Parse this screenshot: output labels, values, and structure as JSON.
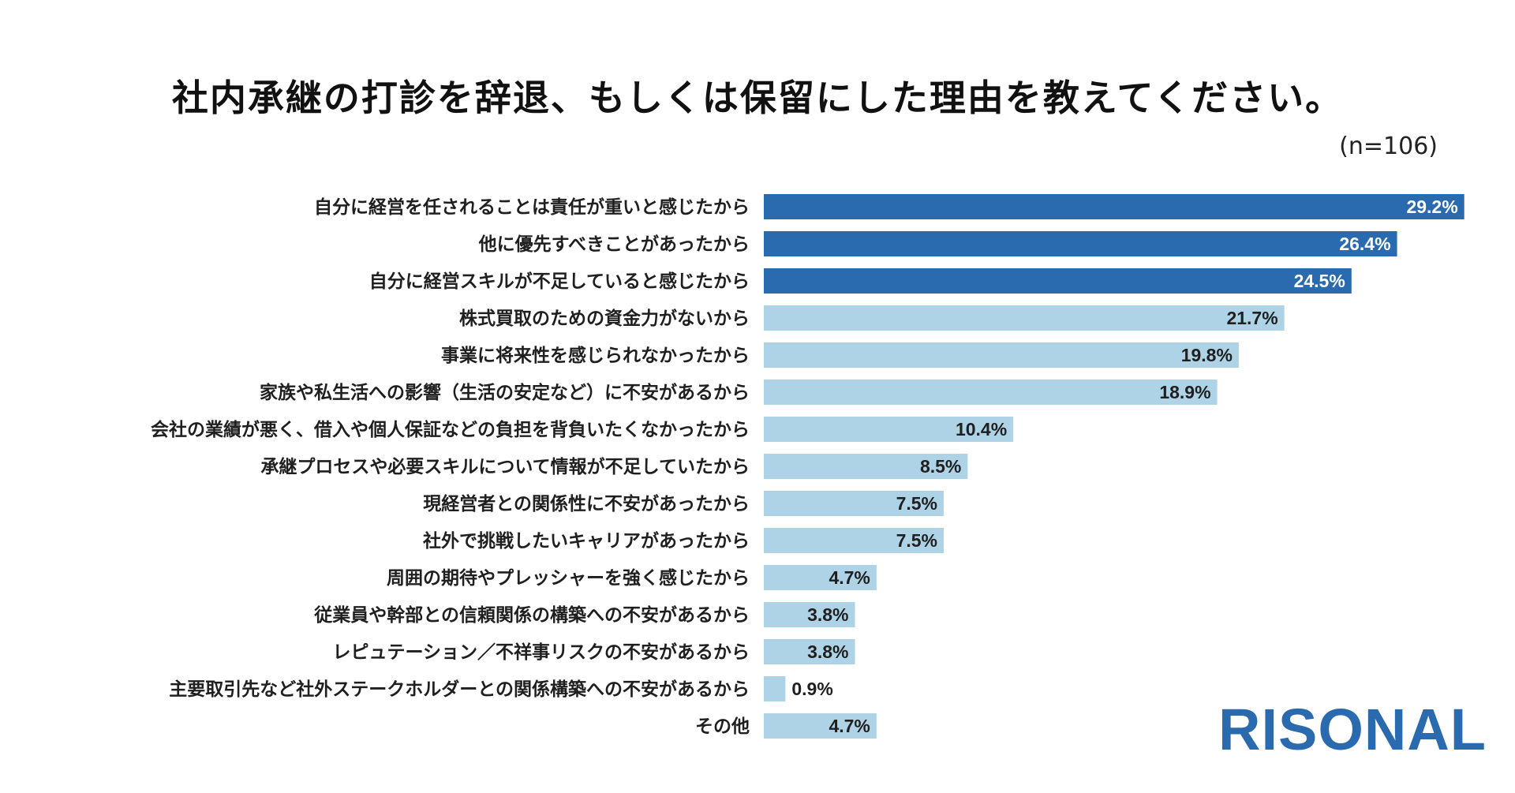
{
  "chart_data": {
    "type": "bar",
    "orientation": "horizontal",
    "title": "社内承継の打診を辞退、もしくは保留にした理由を教えてください。",
    "sample_size": "(n=106)",
    "categories": [
      "自分に経営を任されることは責任が重いと感じたから",
      "他に優先すべきことがあったから",
      "自分に経営スキルが不足していると感じたから",
      "株式買取のための資金力がないから",
      "事業に将来性を感じられなかったから",
      "家族や私生活への影響（生活の安定など）に不安があるから",
      "会社の業績が悪く、借入や個人保証などの負担を背負いたくなかったから",
      "承継プロセスや必要スキルについて情報が不足していたから",
      "現経営者との関係性に不安があったから",
      "社外で挑戦したいキャリアがあったから",
      "周囲の期待やプレッシャーを強く感じたから",
      "従業員や幹部との信頼関係の構築への不安があるから",
      "レピュテーション／不祥事リスクの不安があるから",
      "主要取引先など社外ステークホルダーとの関係構築への不安があるから",
      "その他"
    ],
    "values": [
      29.2,
      26.4,
      24.5,
      21.7,
      19.8,
      18.9,
      10.4,
      8.5,
      7.5,
      7.5,
      4.7,
      3.8,
      3.8,
      0.9,
      4.7
    ],
    "value_labels": [
      "29.2%",
      "26.4%",
      "24.5%",
      "21.7%",
      "19.8%",
      "18.9%",
      "10.4%",
      "8.5%",
      "7.5%",
      "7.5%",
      "4.7%",
      "3.8%",
      "3.8%",
      "0.9%",
      "4.7%"
    ],
    "highlight_count": 3,
    "xlim": [
      0,
      30
    ],
    "colors": {
      "highlight": "#2a6aaf",
      "normal": "#aed3e6",
      "highlight_text": "#ffffff",
      "normal_text": "#1f1f1f"
    }
  },
  "brand": {
    "logo_text": "RISONAL"
  }
}
